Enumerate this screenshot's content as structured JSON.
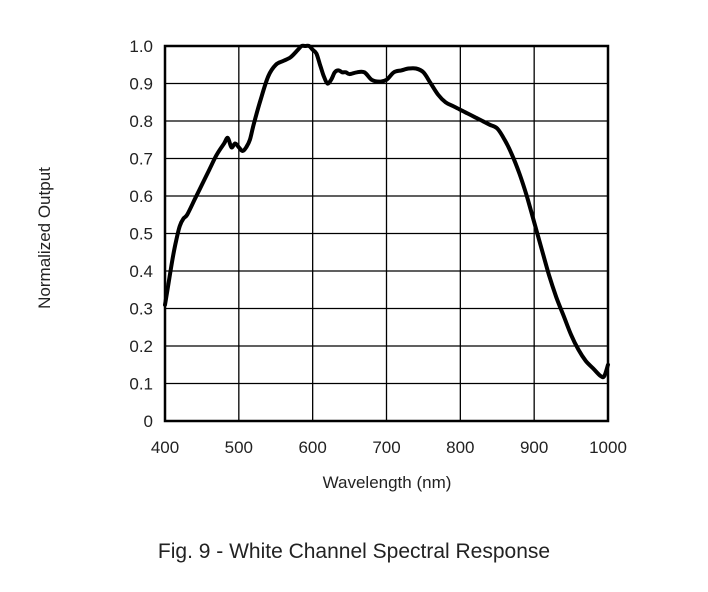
{
  "chart_data": {
    "type": "line",
    "title": "Fig. 9 - White Channel Spectral Response",
    "xlabel": "Wavelength (nm)",
    "ylabel": "Normalized Output",
    "xlim": [
      400,
      1000
    ],
    "ylim": [
      0,
      1.0
    ],
    "x_ticks": [
      "400",
      "500",
      "600",
      "700",
      "800",
      "900",
      "1000"
    ],
    "y_ticks": [
      "0",
      "0.1",
      "0.2",
      "0.3",
      "0.4",
      "0.5",
      "0.6",
      "0.7",
      "0.8",
      "0.9",
      "1.0"
    ],
    "grid": true,
    "series": [
      {
        "x": [
          400,
          405,
          410,
          415,
          420,
          425,
          430,
          440,
          450,
          460,
          470,
          480,
          485,
          490,
          495,
          500,
          505,
          510,
          515,
          520,
          530,
          540,
          550,
          560,
          570,
          580,
          585,
          590,
          595,
          600,
          605,
          610,
          615,
          620,
          625,
          630,
          635,
          640,
          645,
          650,
          660,
          670,
          680,
          690,
          700,
          710,
          720,
          730,
          740,
          750,
          760,
          770,
          780,
          790,
          800,
          810,
          820,
          830,
          840,
          850,
          860,
          870,
          880,
          890,
          900,
          910,
          920,
          930,
          940,
          950,
          960,
          970,
          980,
          990,
          995,
          1000
        ],
        "y": [
          0.31,
          0.37,
          0.43,
          0.48,
          0.52,
          0.54,
          0.55,
          0.59,
          0.63,
          0.67,
          0.71,
          0.74,
          0.755,
          0.73,
          0.74,
          0.73,
          0.72,
          0.73,
          0.75,
          0.79,
          0.86,
          0.92,
          0.95,
          0.96,
          0.97,
          0.99,
          1.0,
          1.0,
          1.0,
          0.99,
          0.98,
          0.95,
          0.92,
          0.9,
          0.91,
          0.93,
          0.935,
          0.93,
          0.93,
          0.925,
          0.93,
          0.93,
          0.91,
          0.905,
          0.91,
          0.93,
          0.935,
          0.94,
          0.94,
          0.93,
          0.9,
          0.87,
          0.85,
          0.84,
          0.83,
          0.82,
          0.81,
          0.8,
          0.79,
          0.78,
          0.75,
          0.71,
          0.66,
          0.6,
          0.53,
          0.46,
          0.39,
          0.33,
          0.28,
          0.23,
          0.19,
          0.16,
          0.14,
          0.12,
          0.12,
          0.15
        ]
      }
    ]
  }
}
